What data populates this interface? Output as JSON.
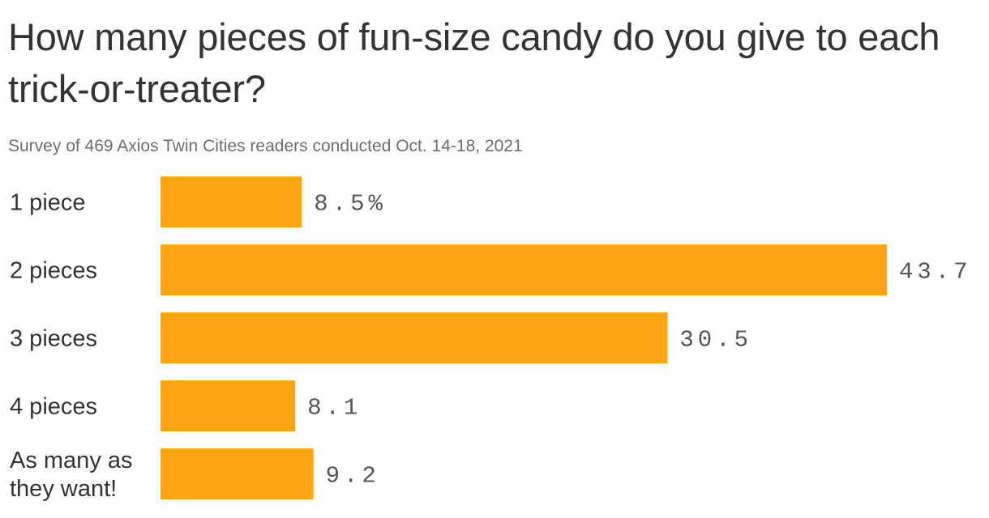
{
  "chart_data": {
    "type": "bar",
    "orientation": "horizontal",
    "title": "How many pieces of fun-size candy do you give to each trick-or-treater?",
    "subtitle": "Survey of 469 Axios Twin Cities readers conducted Oct. 14-18, 2021",
    "categories": [
      "1 piece",
      "2 pieces",
      "3 pieces",
      "4 pieces",
      "As many as they want!"
    ],
    "category_lines": [
      [
        "1 piece"
      ],
      [
        "2 pieces"
      ],
      [
        "3 pieces"
      ],
      [
        "4 pieces"
      ],
      [
        "As many as",
        "they want!"
      ]
    ],
    "values": [
      8.5,
      43.7,
      30.5,
      8.1,
      9.2
    ],
    "value_labels": [
      "8.5%",
      "43.7",
      "30.5",
      "8.1",
      "9.2"
    ],
    "xlim": [
      0,
      43.7
    ],
    "grid": false,
    "colors": {
      "bar": "#FFA515",
      "text": "#333333",
      "subtext": "#6e6e6e",
      "value": "#555555"
    }
  }
}
